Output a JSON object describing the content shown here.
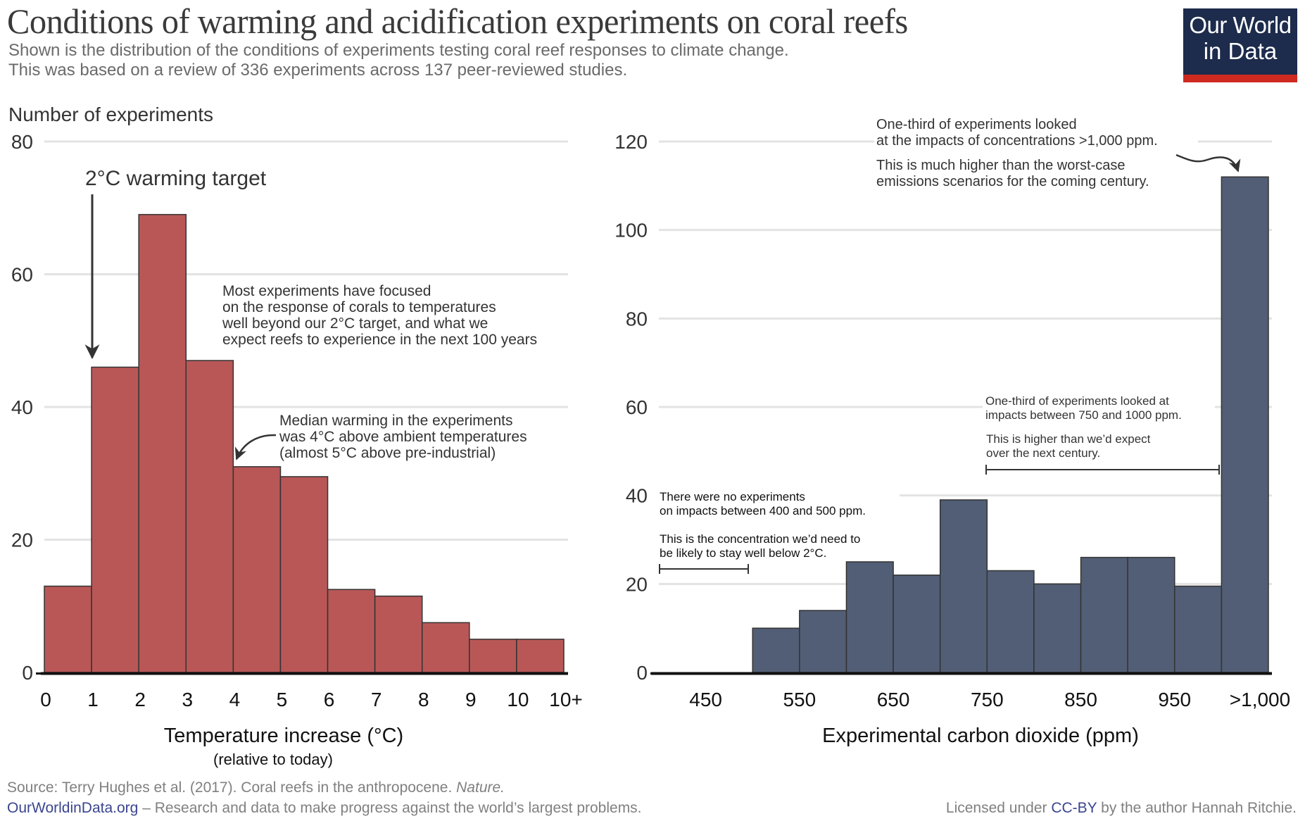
{
  "header": {
    "title": "Conditions of warming and acidification experiments on coral reefs",
    "subtitle_lines": [
      "Shown is the distribution of the conditions of experiments testing coral reef responses to climate change.",
      "This was based on a review of 336 experiments across 137 peer-reviewed studies."
    ],
    "logo_line1": "Our World",
    "logo_line2": "in Data"
  },
  "colors": {
    "temperature_bars": "#b95757",
    "co2_bars": "#525e76",
    "gridline": "#e3e3e3",
    "logo_bg": "#1d2b4c",
    "logo_accent": "#cf2a20",
    "link": "#3b4590"
  },
  "chart_data": [
    {
      "type": "bar",
      "subtype": "histogram",
      "title": "Temperature increase",
      "ylabel": "Number of experiments",
      "xlabel": "Temperature increase (°C)",
      "xlabel_sub": "(relative to today)",
      "ylim": [
        0,
        80
      ],
      "yticks": [
        0,
        20,
        40,
        60,
        80
      ],
      "grid": true,
      "bin_edge_labels": [
        "0",
        "1",
        "2",
        "3",
        "4",
        "5",
        "6",
        "7",
        "8",
        "9",
        "10",
        "10+"
      ],
      "categories": [
        "0–1",
        "1–2",
        "2–3",
        "3–4",
        "4–5",
        "5–6",
        "6–7",
        "7–8",
        "8–9",
        "9–10",
        "10+"
      ],
      "values": [
        13,
        46,
        69,
        47,
        31,
        29.5,
        12.5,
        11.5,
        7.5,
        5,
        5
      ],
      "annotations": [
        {
          "id": "target",
          "text": "2°C warming target"
        },
        {
          "id": "focus",
          "lines": [
            "Most experiments have focused",
            "on the response of corals to temperatures",
            "well beyond our 2°C target, and what we",
            "expect reefs to experience in the next 100 years"
          ]
        },
        {
          "id": "median",
          "lines": [
            "Median warming in the experiments",
            "was 4°C above ambient temperatures",
            "(almost 5°C above pre-industrial)"
          ]
        }
      ]
    },
    {
      "type": "bar",
      "subtype": "histogram",
      "title": "Experimental carbon dioxide",
      "ylabel": "Number of experiments",
      "xlabel": "Experimental carbon dioxide (ppm)",
      "ylim": [
        0,
        120
      ],
      "yticks": [
        0,
        20,
        40,
        60,
        80,
        100,
        120
      ],
      "grid": true,
      "tick_labels": [
        "450",
        "550",
        "650",
        "750",
        "850",
        "950",
        ">1,000"
      ],
      "categories": [
        "400–450",
        "450–500",
        "500–550",
        "550–600",
        "600–650",
        "650–700",
        "700–750",
        "750–800",
        "800–850",
        "850–900",
        "900–950",
        "950–1000",
        ">1000"
      ],
      "values": [
        0,
        0,
        10,
        14,
        25,
        22,
        39,
        23,
        20,
        26,
        26,
        19.5,
        112
      ],
      "annotations": [
        {
          "id": "high",
          "lines": [
            "One-third of experiments looked",
            "at the impacts of concentrations >1,000 ppm.",
            "This is much higher than the worst-case",
            "emissions scenarios for the coming century."
          ]
        },
        {
          "id": "mid",
          "lines": [
            "One-third of experiments looked at",
            "impacts between 750 and 1000 ppm.",
            "This is higher than we’d expect",
            "over the next century."
          ]
        },
        {
          "id": "none",
          "lines": [
            "There were no experiments",
            "on impacts between 400 and 500 ppm.",
            "This is the concentration we’d need to",
            "be likely to stay well below 2°C."
          ]
        }
      ]
    }
  ],
  "footer": {
    "source": "Source: Terry Hughes et al. (2017). Coral reefs in the anthropocene. ",
    "source_journal": "Nature.",
    "site_link": "OurWorldinData.org",
    "site_tagline": " – Research and data to make progress against the world’s largest problems.",
    "license_prefix": "Licensed under ",
    "license_link": "CC-BY",
    "license_suffix": " by the author Hannah Ritchie."
  }
}
